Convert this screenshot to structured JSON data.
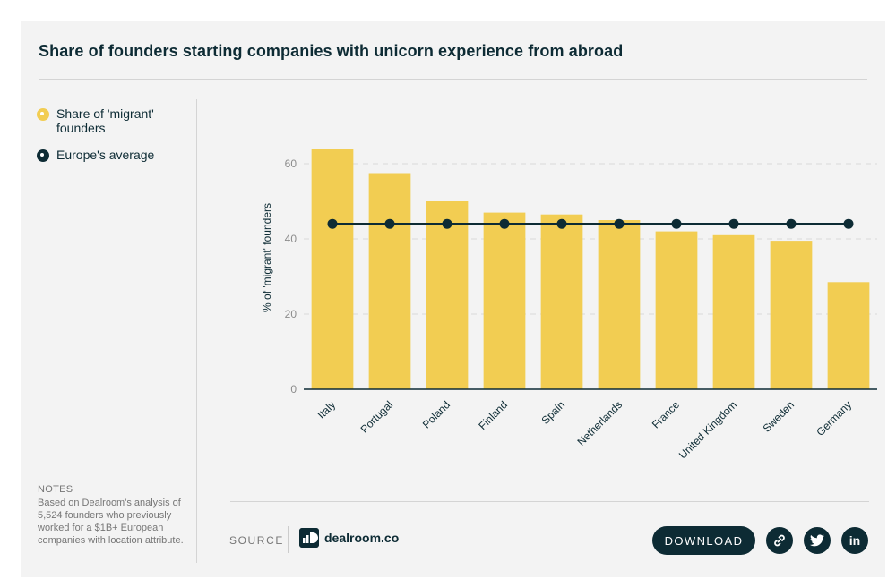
{
  "title": "Share of founders starting companies with unicorn experience from abroad",
  "legend": [
    {
      "label": "Share of 'migrant' founders",
      "color": "#f2cd52"
    },
    {
      "label": "Europe's average",
      "color": "#0d2b34"
    }
  ],
  "notes": {
    "heading": "NOTES",
    "text": "Based on Dealroom's analysis of 5,524 founders who previously worked for a $1B+ European companies with location attribute."
  },
  "footer": {
    "source_label": "SOURCE",
    "brand_text": "dealroom.co",
    "download_label": "DOWNLOAD",
    "icons": [
      "link-icon",
      "twitter-icon",
      "linkedin-icon"
    ],
    "linkedin_glyph": "in"
  },
  "chart_data": {
    "type": "bar",
    "categories": [
      "Italy",
      "Portugal",
      "Poland",
      "Finland",
      "Spain",
      "Netherlands",
      "France",
      "United Kingdom",
      "Sweden",
      "Germany"
    ],
    "series": [
      {
        "name": "Share of 'migrant' founders",
        "type": "bar",
        "color": "#f2cd52",
        "values": [
          64,
          57.5,
          50,
          47,
          46.5,
          45,
          42,
          41,
          39.5,
          28.5
        ]
      },
      {
        "name": "Europe's average",
        "type": "line",
        "color": "#0d2b34",
        "values": [
          44,
          44,
          44,
          44,
          44,
          44,
          44,
          44,
          44,
          44
        ]
      }
    ],
    "ylabel": "% of 'migrant' founders",
    "xlabel": "",
    "ylim": [
      0,
      70
    ],
    "yticks": [
      0,
      20,
      40,
      60
    ],
    "grid": true
  }
}
